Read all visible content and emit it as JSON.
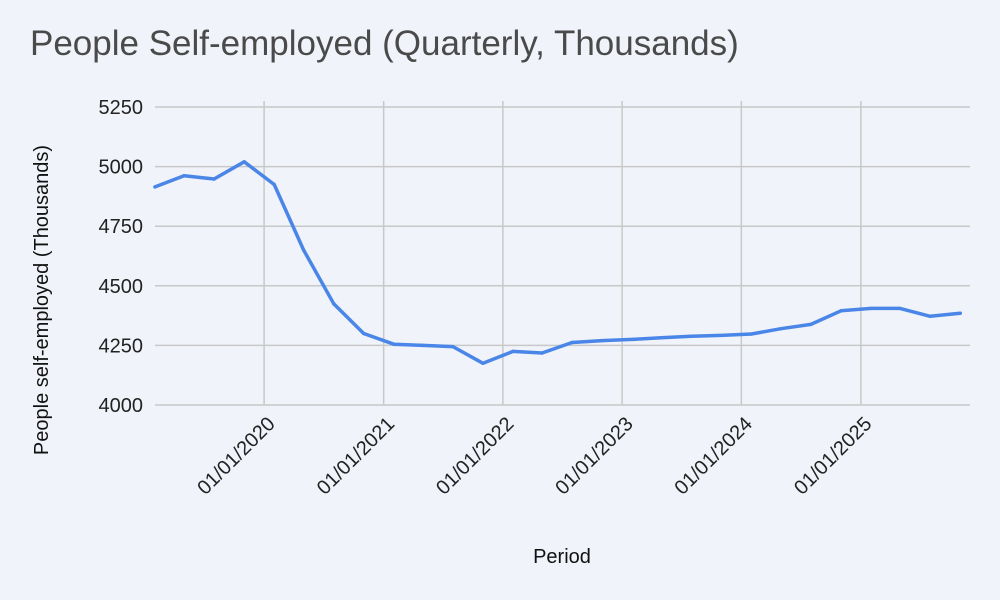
{
  "chart_data": {
    "type": "line",
    "title": "People Self-employed (Quarterly, Thousands)",
    "xlabel": "Period",
    "ylabel": "People self-employed (Thousands)",
    "ylim": [
      4000,
      5250
    ],
    "yticks": [
      4000,
      4250,
      4500,
      4750,
      5000,
      5250
    ],
    "xticks": [
      "01/01/2020",
      "01/01/2021",
      "01/01/2022",
      "01/01/2023",
      "01/01/2024",
      "01/01/2025"
    ],
    "grid": true,
    "color": "#4a86e8",
    "series": [
      {
        "x": [
          "2019-02-01",
          "2019-05-01",
          "2019-08-01",
          "2019-11-01",
          "2020-02-01",
          "2020-05-01",
          "2020-08-01",
          "2020-11-01",
          "2021-02-01",
          "2021-05-01",
          "2021-08-01",
          "2021-11-01",
          "2022-02-01",
          "2022-05-01",
          "2022-08-01",
          "2022-11-01",
          "2023-02-01",
          "2023-05-01",
          "2023-08-01",
          "2023-11-01",
          "2024-02-01",
          "2024-05-01",
          "2024-08-01",
          "2024-11-01",
          "2025-02-01",
          "2025-05-01",
          "2025-08-01",
          "2025-11-01"
        ],
        "values": [
          4915,
          4962,
          4948,
          5020,
          4925,
          4650,
          4425,
          4300,
          4255,
          4250,
          4245,
          4175,
          4225,
          4218,
          4262,
          4270,
          4275,
          4282,
          4288,
          4292,
          4298,
          4320,
          4338,
          4395,
          4405,
          4405,
          4372,
          4385
        ]
      }
    ]
  }
}
